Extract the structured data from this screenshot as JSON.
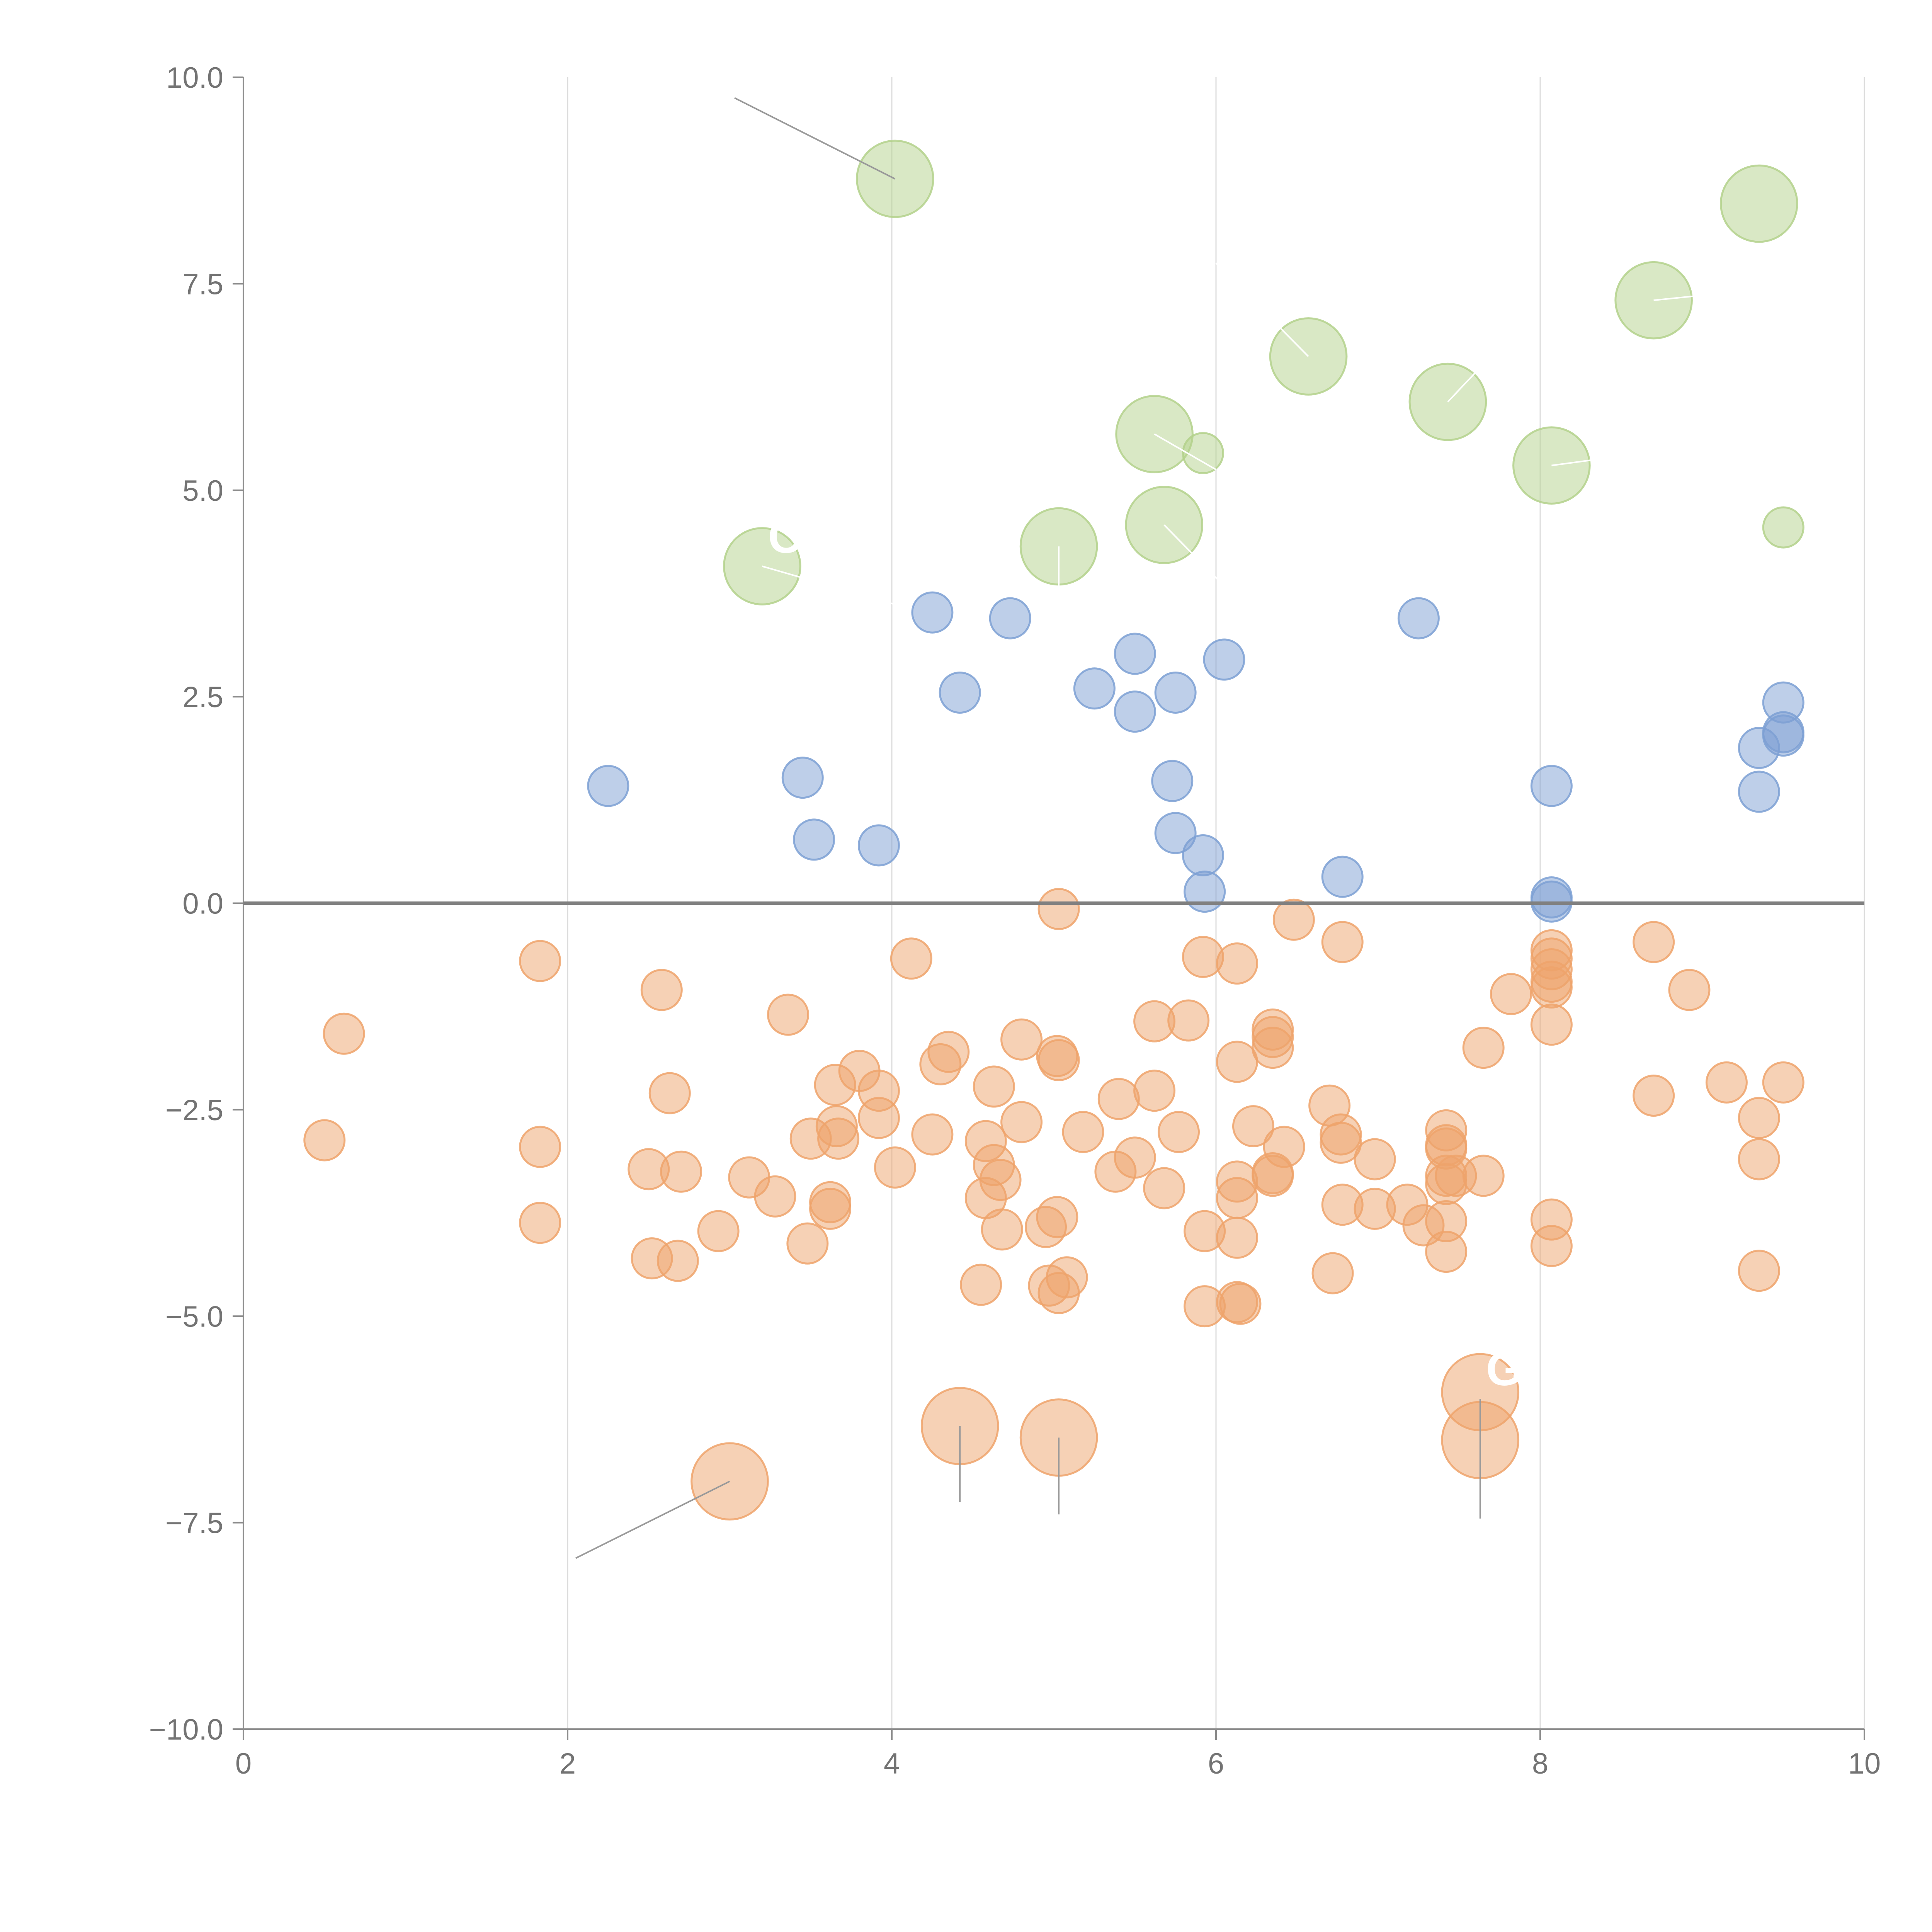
{
  "colors": {
    "positive": "#7da0d3",
    "negative": "#eea36b",
    "highlight": "#b3d18b",
    "axis": "#8c8c8c",
    "grid": "#dcdcdc",
    "tick_text": "#737373",
    "leader_dark": "#9a9a9a",
    "leader_light": "#ffffff"
  },
  "chart_data": {
    "type": "scatter",
    "title": "",
    "xlabel": "",
    "ylabel": "",
    "xlim": [
      0,
      10
    ],
    "ylim": [
      -10,
      10
    ],
    "x_ticks": [
      0,
      2,
      4,
      6,
      8,
      10
    ],
    "y_ticks": [
      -10,
      -7.5,
      -5,
      -2.5,
      0,
      2.5,
      5,
      7.5,
      10
    ],
    "x_tick_labels": [
      "0",
      "2",
      "4",
      "6",
      "8",
      "10"
    ],
    "y_tick_labels": [
      "−10.0",
      "−7.5",
      "−5.0",
      "−2.5",
      "0.0",
      "2.5",
      "5.0",
      "7.5",
      "10.0"
    ],
    "grid": "vertical",
    "reference_line_y": 0,
    "series": [
      {
        "name": "positive",
        "color_key": "positive",
        "size": 1,
        "points": [
          [
            2.25,
            1.42
          ],
          [
            3.45,
            1.52
          ],
          [
            3.52,
            0.77
          ],
          [
            3.92,
            0.7
          ],
          [
            4.25,
            3.52
          ],
          [
            4.42,
            2.55
          ],
          [
            4.73,
            3.45
          ],
          [
            5.25,
            2.6
          ],
          [
            5.5,
            3.02
          ],
          [
            5.5,
            2.32
          ],
          [
            5.75,
            2.55
          ],
          [
            5.73,
            1.48
          ],
          [
            5.75,
            0.85
          ],
          [
            5.92,
            0.58
          ],
          [
            5.93,
            0.14
          ],
          [
            6.05,
            2.95
          ],
          [
            6.78,
            0.32
          ],
          [
            7.25,
            3.45
          ],
          [
            8.07,
            1.42
          ],
          [
            8.07,
            0.07
          ],
          [
            8.07,
            0.02
          ],
          [
            9.35,
            1.88
          ],
          [
            9.35,
            1.35
          ],
          [
            9.5,
            2.43
          ],
          [
            9.5,
            2.07
          ],
          [
            9.5,
            2.03
          ]
        ]
      },
      {
        "name": "negative",
        "color_key": "negative",
        "size": 1,
        "points": [
          [
            0.5,
            -2.87
          ],
          [
            0.62,
            -1.58
          ],
          [
            1.83,
            -0.7
          ],
          [
            1.83,
            -2.95
          ],
          [
            1.83,
            -3.87
          ],
          [
            2.5,
            -3.22
          ],
          [
            2.52,
            -4.3
          ],
          [
            2.58,
            -1.05
          ],
          [
            2.63,
            -2.3
          ],
          [
            2.68,
            -4.33
          ],
          [
            2.7,
            -3.25
          ],
          [
            2.93,
            -3.97
          ],
          [
            3.12,
            -3.32
          ],
          [
            3.28,
            -3.55
          ],
          [
            3.36,
            -1.35
          ],
          [
            3.48,
            -4.12
          ],
          [
            3.5,
            -2.85
          ],
          [
            3.62,
            -3.62
          ],
          [
            3.62,
            -3.7
          ],
          [
            3.65,
            -2.2
          ],
          [
            3.66,
            -2.7
          ],
          [
            3.67,
            -2.85
          ],
          [
            3.8,
            -2.03
          ],
          [
            3.92,
            -2.27
          ],
          [
            3.92,
            -2.6
          ],
          [
            4.02,
            -3.2
          ],
          [
            4.12,
            -0.67
          ],
          [
            4.25,
            -2.8
          ],
          [
            4.3,
            -1.95
          ],
          [
            4.35,
            -1.8
          ],
          [
            4.55,
            -4.62
          ],
          [
            4.58,
            -2.88
          ],
          [
            4.58,
            -3.57
          ],
          [
            4.63,
            -2.22
          ],
          [
            4.63,
            -3.17
          ],
          [
            4.67,
            -3.35
          ],
          [
            4.68,
            -3.95
          ],
          [
            4.8,
            -2.65
          ],
          [
            4.8,
            -1.65
          ],
          [
            4.95,
            -3.92
          ],
          [
            4.97,
            -4.63
          ],
          [
            5.02,
            -3.8
          ],
          [
            5.02,
            -1.85
          ],
          [
            5.03,
            -0.07
          ],
          [
            5.03,
            -1.9
          ],
          [
            5.03,
            -4.72
          ],
          [
            5.08,
            -4.53
          ],
          [
            5.18,
            -2.77
          ],
          [
            5.38,
            -3.25
          ],
          [
            5.4,
            -2.37
          ],
          [
            5.5,
            -3.08
          ],
          [
            5.62,
            -1.43
          ],
          [
            5.62,
            -2.27
          ],
          [
            5.68,
            -3.45
          ],
          [
            5.77,
            -2.77
          ],
          [
            5.83,
            -1.42
          ],
          [
            5.92,
            -0.65
          ],
          [
            5.93,
            -3.97
          ],
          [
            5.93,
            -4.88
          ],
          [
            6.13,
            -0.73
          ],
          [
            6.13,
            -1.92
          ],
          [
            6.13,
            -3.37
          ],
          [
            6.13,
            -3.57
          ],
          [
            6.13,
            -4.05
          ],
          [
            6.13,
            -4.83
          ],
          [
            6.15,
            -4.85
          ],
          [
            6.23,
            -2.7
          ],
          [
            6.35,
            -1.53
          ],
          [
            6.35,
            -1.62
          ],
          [
            6.35,
            -1.75
          ],
          [
            6.35,
            -3.27
          ],
          [
            6.35,
            -3.3
          ],
          [
            6.42,
            -2.95
          ],
          [
            6.48,
            -0.2
          ],
          [
            6.7,
            -2.45
          ],
          [
            6.72,
            -4.48
          ],
          [
            6.77,
            -2.8
          ],
          [
            6.77,
            -2.9
          ],
          [
            6.78,
            -3.65
          ],
          [
            6.78,
            -0.47
          ],
          [
            6.98,
            -3.7
          ],
          [
            6.98,
            -3.1
          ],
          [
            7.18,
            -3.65
          ],
          [
            7.28,
            -3.9
          ],
          [
            7.42,
            -2.75
          ],
          [
            7.42,
            -2.93
          ],
          [
            7.42,
            -2.97
          ],
          [
            7.42,
            -3.3
          ],
          [
            7.42,
            -3.4
          ],
          [
            7.42,
            -3.85
          ],
          [
            7.42,
            -4.22
          ],
          [
            7.48,
            -3.3
          ],
          [
            7.65,
            -3.3
          ],
          [
            7.65,
            -1.75
          ],
          [
            7.82,
            -1.1
          ],
          [
            8.07,
            -0.57
          ],
          [
            8.07,
            -0.67
          ],
          [
            8.07,
            -0.8
          ],
          [
            8.07,
            -0.95
          ],
          [
            8.07,
            -1.02
          ],
          [
            8.07,
            -1.47
          ],
          [
            8.07,
            -3.83
          ],
          [
            8.07,
            -4.15
          ],
          [
            8.7,
            -0.47
          ],
          [
            8.7,
            -2.33
          ],
          [
            8.92,
            -1.05
          ],
          [
            9.15,
            -2.17
          ],
          [
            9.35,
            -2.6
          ],
          [
            9.35,
            -3.1
          ],
          [
            9.35,
            -4.45
          ],
          [
            9.5,
            -2.17
          ]
        ]
      },
      {
        "name": "highlight-positive",
        "color_key": "highlight",
        "points": [
          [
            4.02,
            8.77,
            1.9
          ],
          [
            3.2,
            4.08,
            1.9
          ],
          [
            5.03,
            4.32,
            1.9
          ],
          [
            5.68,
            4.58,
            1.9
          ],
          [
            5.62,
            5.68,
            1.9
          ],
          [
            5.92,
            5.45,
            1.0
          ],
          [
            6.57,
            6.62,
            1.9
          ],
          [
            7.43,
            6.07,
            1.9
          ],
          [
            8.07,
            5.3,
            1.9
          ],
          [
            8.7,
            7.3,
            1.9
          ],
          [
            9.35,
            8.47,
            1.9
          ],
          [
            9.5,
            4.55,
            1.0
          ]
        ]
      },
      {
        "name": "highlight-negative",
        "color_key": "negative",
        "points": [
          [
            3.0,
            -7.0,
            1.9
          ],
          [
            4.42,
            -6.33,
            1.9
          ],
          [
            5.03,
            -6.47,
            1.9
          ],
          [
            7.63,
            -5.92,
            1.9
          ],
          [
            7.63,
            -6.5,
            1.9
          ]
        ]
      }
    ],
    "annotations": [
      {
        "label": "",
        "point": [
          4.02,
          8.77
        ],
        "anchor": [
          3.03,
          9.75
        ],
        "style": "dark"
      },
      {
        "label": "",
        "point": [
          3.0,
          -7.0
        ],
        "anchor": [
          2.05,
          -7.93
        ],
        "style": "dark"
      },
      {
        "label": "",
        "point": [
          4.42,
          -6.33
        ],
        "anchor": [
          4.42,
          -7.25
        ],
        "style": "dark"
      },
      {
        "label": "",
        "point": [
          5.03,
          -6.47
        ],
        "anchor": [
          5.03,
          -7.4
        ],
        "style": "dark"
      },
      {
        "label": "G",
        "point": [
          7.63,
          -6.0
        ],
        "anchor": [
          7.63,
          -7.45
        ],
        "style": "dark"
      },
      {
        "label": "O",
        "point": [
          3.2,
          4.08
        ],
        "anchor": [
          4.05,
          3.6
        ],
        "style": "light"
      },
      {
        "label": "",
        "point": [
          5.03,
          4.32
        ],
        "anchor": [
          5.03,
          3.45
        ],
        "style": "light"
      },
      {
        "label": "",
        "point": [
          5.68,
          4.58
        ],
        "anchor": [
          6.02,
          3.9
        ],
        "style": "light"
      },
      {
        "label": "",
        "point": [
          5.62,
          5.68
        ],
        "anchor": [
          6.0,
          5.25
        ],
        "style": "light"
      },
      {
        "label": "",
        "point": [
          6.57,
          6.62
        ],
        "anchor": [
          6.0,
          7.75
        ],
        "style": "light"
      },
      {
        "label": "",
        "point": [
          7.43,
          6.07
        ],
        "anchor": [
          7.9,
          7.05
        ],
        "style": "light"
      },
      {
        "label": "",
        "point": [
          8.07,
          5.3
        ],
        "anchor": [
          8.45,
          5.4
        ],
        "style": "light"
      },
      {
        "label": "",
        "point": [
          8.7,
          7.3
        ],
        "anchor": [
          9.2,
          7.4
        ],
        "style": "light"
      }
    ]
  }
}
